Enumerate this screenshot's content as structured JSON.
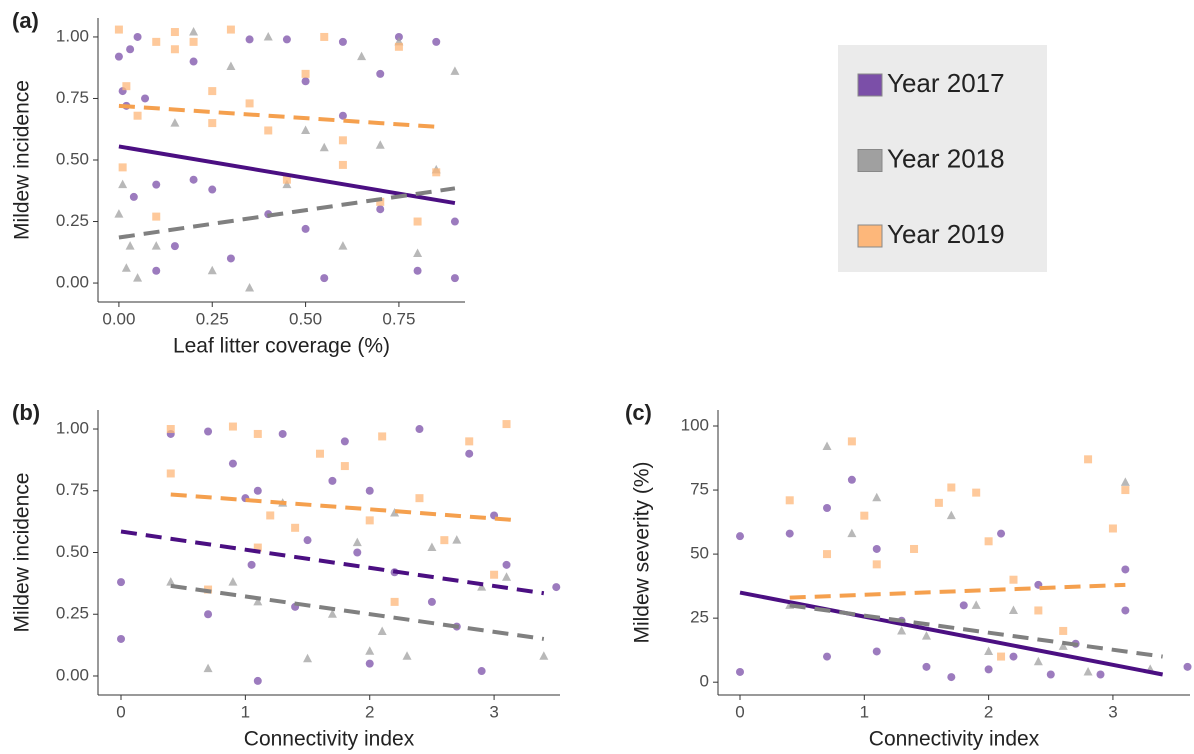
{
  "chart_data": [
    {
      "type": "scatter",
      "panel_label": "(a)",
      "x_label": "Leaf litter coverage (%)",
      "y_label": "Mildew incidence",
      "xlim": [
        -0.056,
        0.927
      ],
      "ylim": [
        -0.077,
        1.077
      ],
      "xticks": [
        {
          "value": 0,
          "label": "0.00"
        },
        {
          "value": 0.25,
          "label": "0.25"
        },
        {
          "value": 0.5,
          "label": "0.50"
        },
        {
          "value": 0.75,
          "label": "0.75"
        }
      ],
      "yticks": [
        {
          "value": 0,
          "label": "0.00"
        },
        {
          "value": 0.25,
          "label": "0.25"
        },
        {
          "value": 0.5,
          "label": "0.50"
        },
        {
          "value": 0.75,
          "label": "0.75"
        },
        {
          "value": 1,
          "label": "1.00"
        }
      ],
      "series": [
        {
          "name": "Year 2017",
          "color": "#7b4fa8",
          "line_color": "#4b0f82",
          "marker": "circle",
          "x": [
            0,
            0.01,
            0.02,
            0.03,
            0.04,
            0.05,
            0.07,
            0.1,
            0.1,
            0.15,
            0.2,
            0.2,
            0.25,
            0.3,
            0.35,
            0.4,
            0.45,
            0.5,
            0.5,
            0.55,
            0.6,
            0.6,
            0.7,
            0.7,
            0.75,
            0.8,
            0.85,
            0.9,
            0.9
          ],
          "values": [
            0.92,
            0.78,
            0.72,
            0.95,
            0.35,
            1.0,
            0.75,
            0.4,
            0.05,
            0.15,
            0.9,
            0.42,
            0.38,
            0.1,
            0.99,
            0.28,
            0.99,
            0.82,
            0.22,
            0.02,
            0.68,
            0.98,
            0.85,
            0.3,
            1.0,
            0.05,
            0.98,
            0.25,
            0.02
          ],
          "trend": {
            "x": [
              0,
              0.9
            ],
            "y": [
              0.555,
              0.325
            ],
            "dashed": false
          }
        },
        {
          "name": "Year 2018",
          "color": "#a0a0a0",
          "line_color": "#808080",
          "marker": "triangle",
          "x": [
            0,
            0.01,
            0.02,
            0.03,
            0.05,
            0.1,
            0.15,
            0.2,
            0.25,
            0.3,
            0.35,
            0.4,
            0.45,
            0.5,
            0.55,
            0.6,
            0.65,
            0.7,
            0.75,
            0.8,
            0.85,
            0.9
          ],
          "values": [
            0.28,
            0.4,
            0.06,
            0.15,
            0.02,
            0.15,
            0.65,
            1.02,
            0.05,
            0.88,
            -0.02,
            1.0,
            0.4,
            0.62,
            0.55,
            0.15,
            0.92,
            0.56,
            0.98,
            0.12,
            0.46,
            0.86
          ],
          "trend": {
            "x": [
              0,
              0.9
            ],
            "y": [
              0.185,
              0.385
            ],
            "dashed": true
          }
        },
        {
          "name": "Year 2019",
          "color": "#fdb77a",
          "line_color": "#f5a04e",
          "marker": "square",
          "x": [
            0,
            0.01,
            0.02,
            0.05,
            0.1,
            0.1,
            0.15,
            0.15,
            0.2,
            0.25,
            0.25,
            0.3,
            0.35,
            0.4,
            0.45,
            0.5,
            0.55,
            0.6,
            0.6,
            0.7,
            0.75,
            0.8,
            0.85
          ],
          "values": [
            1.03,
            0.47,
            0.8,
            0.68,
            0.98,
            0.27,
            1.02,
            0.95,
            0.98,
            0.78,
            0.65,
            1.03,
            0.73,
            0.62,
            0.42,
            0.85,
            1.0,
            0.48,
            0.58,
            0.33,
            0.96,
            0.25,
            0.45
          ],
          "trend": {
            "x": [
              0,
              0.85
            ],
            "y": [
              0.72,
              0.635
            ],
            "dashed": true
          }
        }
      ]
    },
    {
      "type": "scatter",
      "panel_label": "(b)",
      "x_label": "Connectivity index",
      "y_label": "Mildew incidence",
      "xlim": [
        -0.185,
        3.53
      ],
      "ylim": [
        -0.077,
        1.077
      ],
      "xticks": [
        0,
        1,
        2,
        3
      ],
      "yticks": [
        {
          "value": 0,
          "label": "0.00"
        },
        {
          "value": 0.25,
          "label": "0.25"
        },
        {
          "value": 0.5,
          "label": "0.50"
        },
        {
          "value": 0.75,
          "label": "0.75"
        },
        {
          "value": 1,
          "label": "1.00"
        }
      ],
      "series": [
        {
          "name": "Year 2017",
          "color": "#7b4fa8",
          "line_color": "#4b0f82",
          "marker": "circle",
          "x": [
            0,
            0,
            0.4,
            0.7,
            0.7,
            0.9,
            1,
            1.05,
            1.1,
            1.1,
            1.3,
            1.4,
            1.5,
            1.7,
            1.8,
            1.9,
            2,
            2,
            2.2,
            2.4,
            2.5,
            2.7,
            2.8,
            2.9,
            3,
            3.1,
            3.5
          ],
          "values": [
            0.38,
            0.15,
            0.98,
            0.99,
            0.25,
            0.86,
            0.72,
            0.45,
            0.75,
            -0.02,
            0.98,
            0.28,
            0.55,
            0.79,
            0.95,
            0.5,
            0.05,
            0.75,
            0.42,
            1.0,
            0.3,
            0.2,
            0.9,
            0.02,
            0.65,
            0.45,
            0.36
          ],
          "trend": {
            "x": [
              0,
              3.4
            ],
            "y": [
              0.585,
              0.335
            ],
            "dashed": true
          }
        },
        {
          "name": "Year 2018",
          "color": "#a0a0a0",
          "line_color": "#808080",
          "marker": "triangle",
          "x": [
            0.4,
            0.7,
            0.9,
            1.1,
            1.3,
            1.5,
            1.7,
            1.9,
            2,
            2.1,
            2.2,
            2.3,
            2.5,
            2.7,
            2.9,
            3.1,
            3.4
          ],
          "values": [
            0.38,
            0.03,
            0.38,
            0.3,
            0.7,
            0.07,
            0.25,
            0.54,
            0.1,
            0.18,
            0.66,
            0.08,
            0.52,
            0.55,
            0.36,
            0.4,
            0.08
          ],
          "trend": {
            "x": [
              0.4,
              3.4
            ],
            "y": [
              0.365,
              0.15
            ],
            "dashed": true
          }
        },
        {
          "name": "Year 2019",
          "color": "#fdb77a",
          "line_color": "#f5a04e",
          "marker": "square",
          "x": [
            0.4,
            0.4,
            0.7,
            0.9,
            1.1,
            1.1,
            1.2,
            1.4,
            1.6,
            1.8,
            2,
            2.1,
            2.2,
            2.4,
            2.6,
            2.8,
            3,
            3.1
          ],
          "values": [
            1.0,
            0.82,
            0.35,
            1.01,
            0.98,
            0.52,
            0.65,
            0.6,
            0.9,
            0.85,
            0.63,
            0.97,
            0.3,
            0.72,
            0.55,
            0.95,
            0.41,
            1.02
          ],
          "trend": {
            "x": [
              0.4,
              3.2
            ],
            "y": [
              0.735,
              0.63
            ],
            "dashed": true
          }
        }
      ]
    },
    {
      "type": "scatter",
      "panel_label": "(c)",
      "x_label": "Connectivity index",
      "y_label": "Mildew severity (%)",
      "xlim": [
        -0.177,
        3.62
      ],
      "ylim": [
        -5,
        106.25
      ],
      "xticks": [
        0,
        1,
        2,
        3
      ],
      "yticks": [
        0,
        25,
        50,
        75,
        100
      ],
      "series": [
        {
          "name": "Year 2017",
          "color": "#7b4fa8",
          "line_color": "#4b0f82",
          "marker": "circle",
          "x": [
            0,
            0,
            0.4,
            0.7,
            0.7,
            0.9,
            1.1,
            1.1,
            1.3,
            1.5,
            1.7,
            1.8,
            2,
            2.1,
            2.2,
            2.4,
            2.5,
            2.7,
            2.9,
            3.1,
            3.1,
            3.6
          ],
          "values": [
            57,
            4,
            58,
            68,
            10,
            79,
            52,
            12,
            24,
            6,
            2,
            30,
            5,
            58,
            10,
            38,
            3,
            15,
            3,
            44,
            28,
            6
          ],
          "trend": {
            "x": [
              0,
              3.4
            ],
            "y": [
              35,
              3
            ],
            "dashed": false
          }
        },
        {
          "name": "Year 2018",
          "color": "#a0a0a0",
          "line_color": "#808080",
          "marker": "triangle",
          "x": [
            0.4,
            0.7,
            0.9,
            1.1,
            1.3,
            1.5,
            1.7,
            1.9,
            2,
            2.2,
            2.4,
            2.6,
            2.8,
            3.1,
            3.3
          ],
          "values": [
            30,
            92,
            58,
            72,
            20,
            18,
            65,
            30,
            12,
            28,
            8,
            14,
            4,
            78,
            5
          ],
          "trend": {
            "x": [
              0.4,
              3.4
            ],
            "y": [
              30,
              10
            ],
            "dashed": true
          }
        },
        {
          "name": "Year 2019",
          "color": "#fdb77a",
          "line_color": "#f5a04e",
          "marker": "square",
          "x": [
            0.4,
            0.7,
            0.9,
            1,
            1.1,
            1.4,
            1.6,
            1.7,
            1.9,
            2,
            2.1,
            2.2,
            2.4,
            2.6,
            2.8,
            3,
            3.1
          ],
          "values": [
            71,
            50,
            94,
            65,
            46,
            52,
            70,
            76,
            74,
            55,
            10,
            40,
            28,
            20,
            87,
            60,
            75
          ],
          "trend": {
            "x": [
              0.4,
              3.1
            ],
            "y": [
              33,
              38
            ],
            "dashed": true
          }
        }
      ]
    }
  ]
}
